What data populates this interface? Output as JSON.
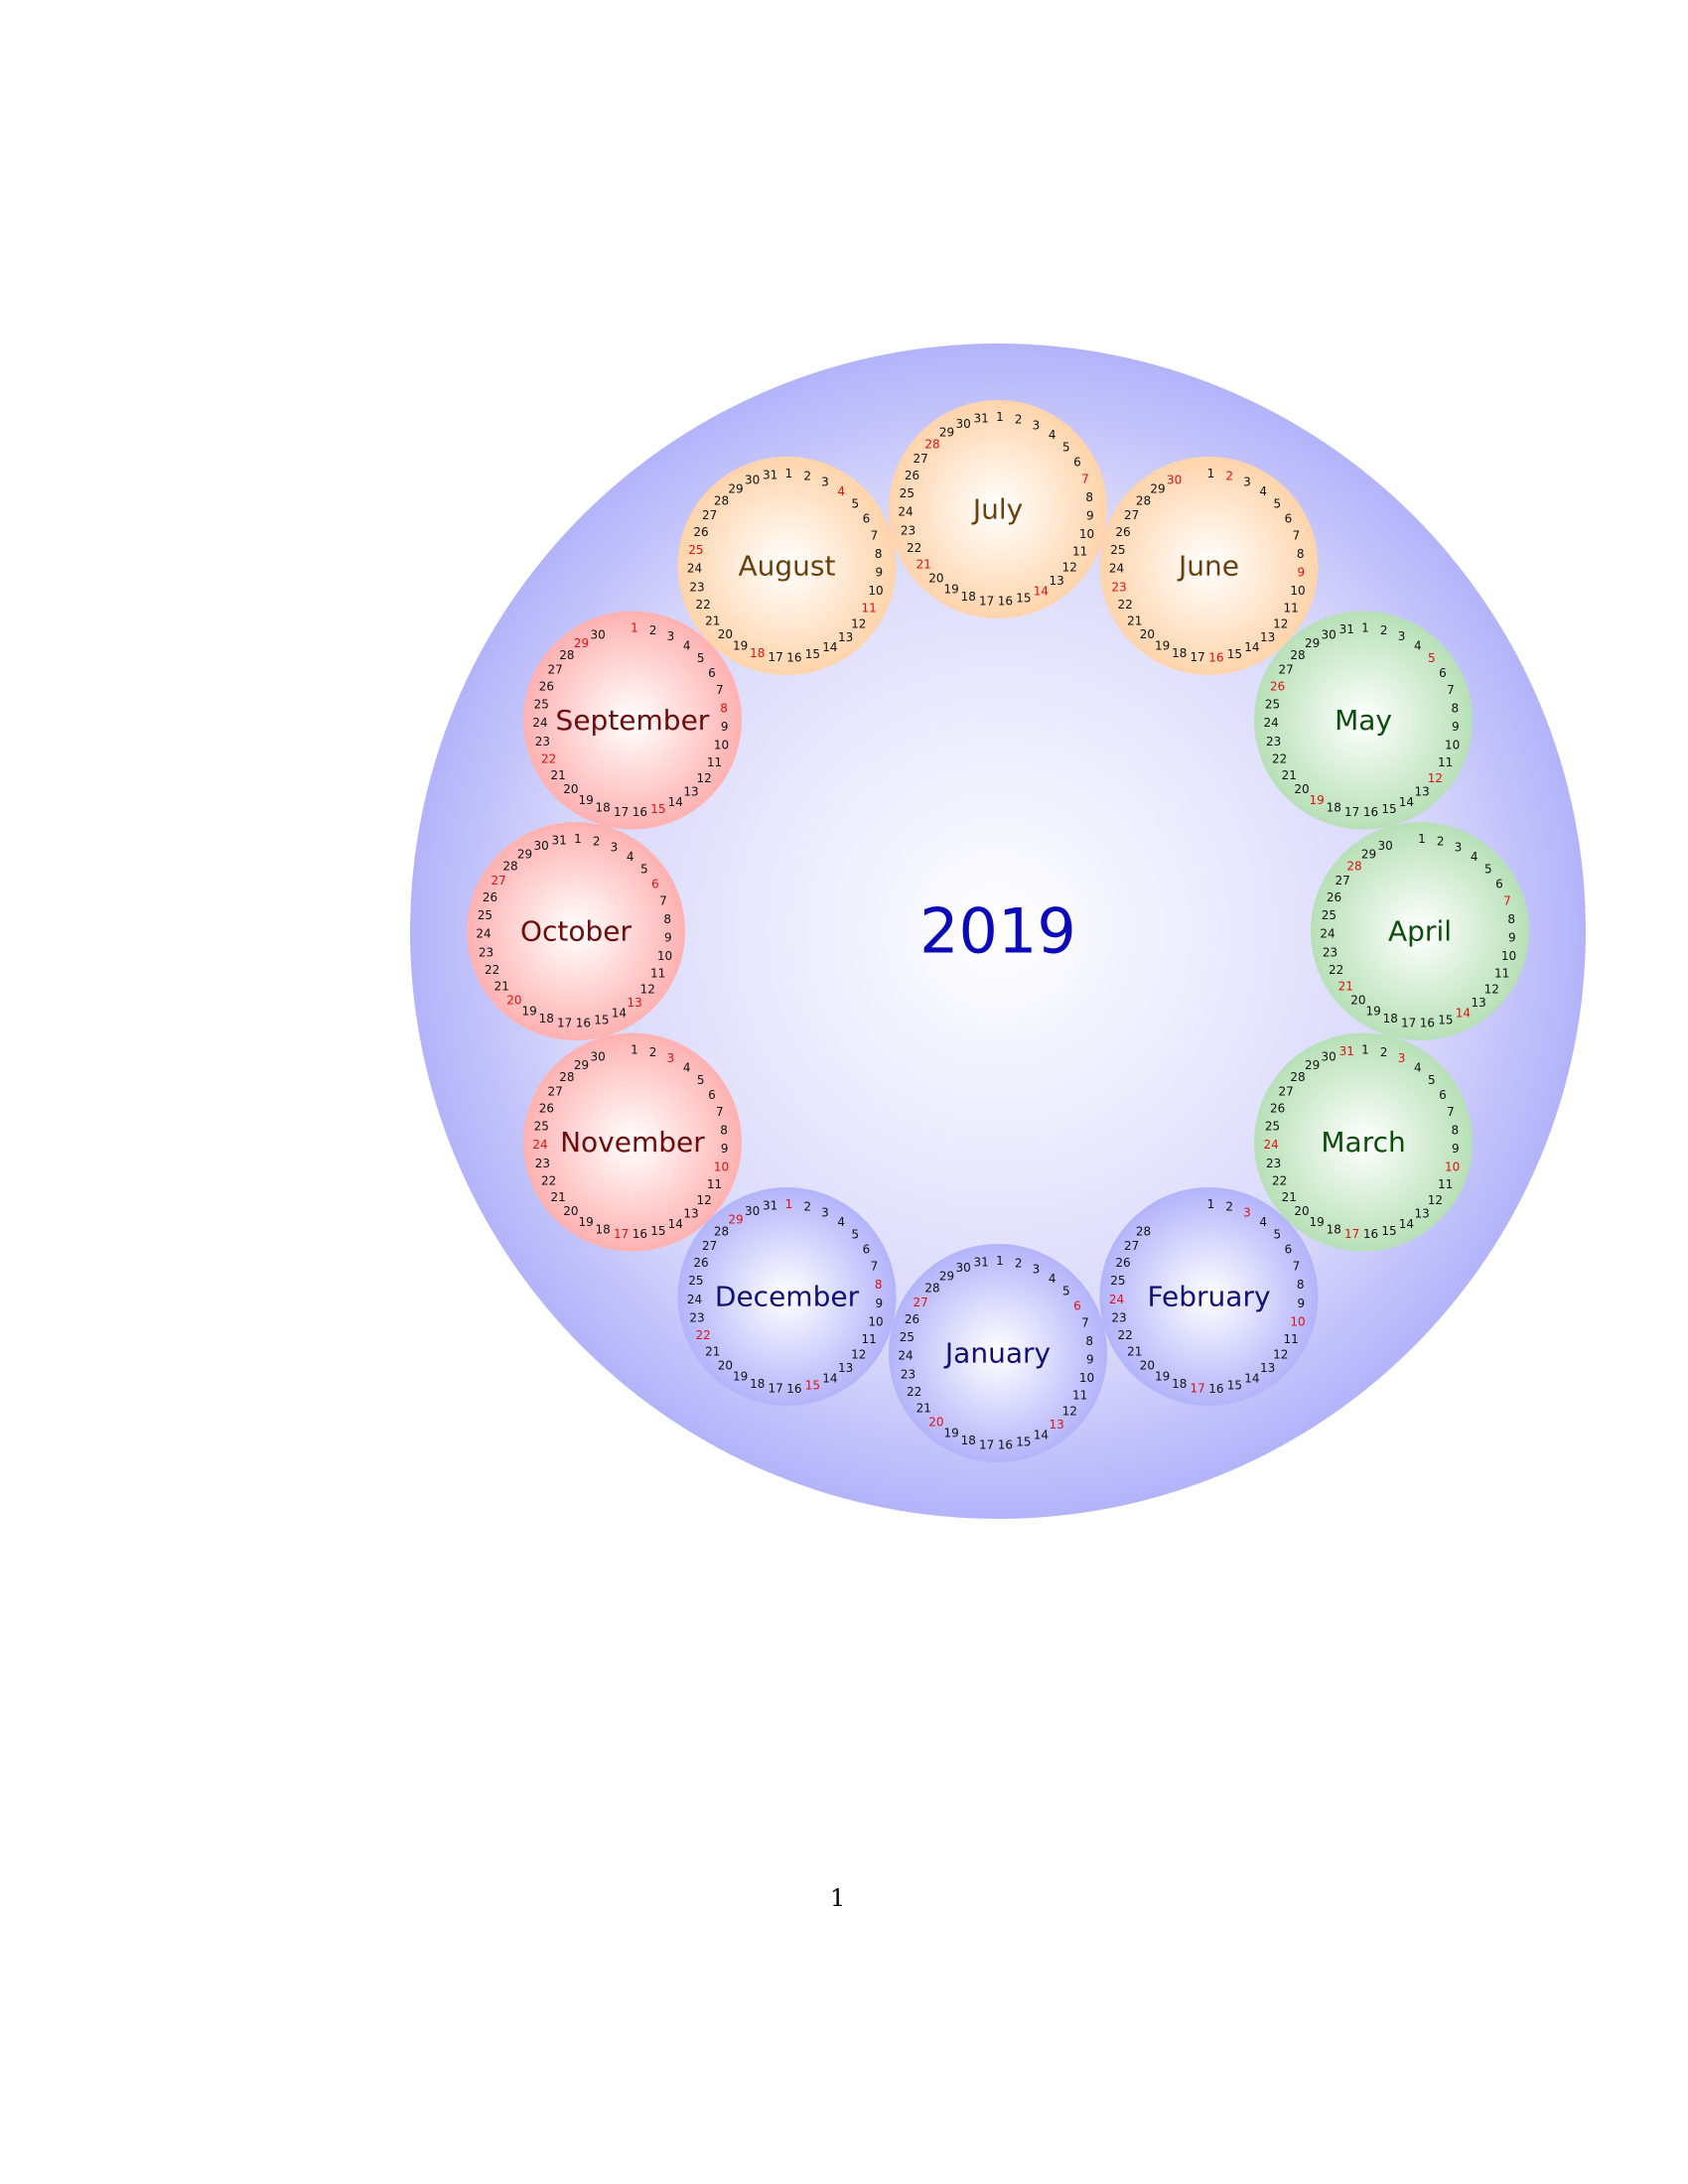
{
  "year": "2019",
  "page_number": "1",
  "colors": {
    "outer_disc": "#b3b3fb",
    "year_text": "#0a0ab8",
    "weekend_day": "#e01010",
    "weekday_day": "#111111",
    "winter_fill": "#b3b3fb",
    "winter_text": "#101078",
    "spring_fill": "#b7e0b7",
    "spring_text": "#0b4d0b",
    "summer_fill": "#ffd4ab",
    "summer_text": "#6b3f0a",
    "autumn_fill": "#ffb1b1",
    "autumn_text": "#6e0b0b"
  },
  "months": [
    {
      "name": "January",
      "days": 31,
      "season": "winter",
      "red_days": [
        6,
        13,
        20,
        27
      ]
    },
    {
      "name": "February",
      "days": 28,
      "season": "winter",
      "red_days": [
        3,
        10,
        17,
        24
      ]
    },
    {
      "name": "March",
      "days": 31,
      "season": "spring",
      "red_days": [
        3,
        10,
        17,
        24,
        31
      ]
    },
    {
      "name": "April",
      "days": 30,
      "season": "spring",
      "red_days": [
        7,
        14,
        21,
        28
      ]
    },
    {
      "name": "May",
      "days": 31,
      "season": "spring",
      "red_days": [
        5,
        12,
        19,
        26
      ]
    },
    {
      "name": "June",
      "days": 30,
      "season": "summer",
      "red_days": [
        2,
        9,
        16,
        23,
        30
      ]
    },
    {
      "name": "July",
      "days": 31,
      "season": "summer",
      "red_days": [
        7,
        14,
        21,
        28
      ]
    },
    {
      "name": "August",
      "days": 31,
      "season": "summer",
      "red_days": [
        4,
        11,
        18,
        25
      ]
    },
    {
      "name": "September",
      "days": 30,
      "season": "autumn",
      "red_days": [
        1,
        8,
        15,
        22,
        29
      ]
    },
    {
      "name": "October",
      "days": 31,
      "season": "autumn",
      "red_days": [
        6,
        13,
        20,
        27
      ]
    },
    {
      "name": "November",
      "days": 30,
      "season": "autumn",
      "red_days": [
        3,
        10,
        17,
        24
      ]
    },
    {
      "name": "December",
      "days": 31,
      "season": "winter",
      "red_days": [
        1,
        8,
        15,
        22,
        29
      ]
    }
  ]
}
